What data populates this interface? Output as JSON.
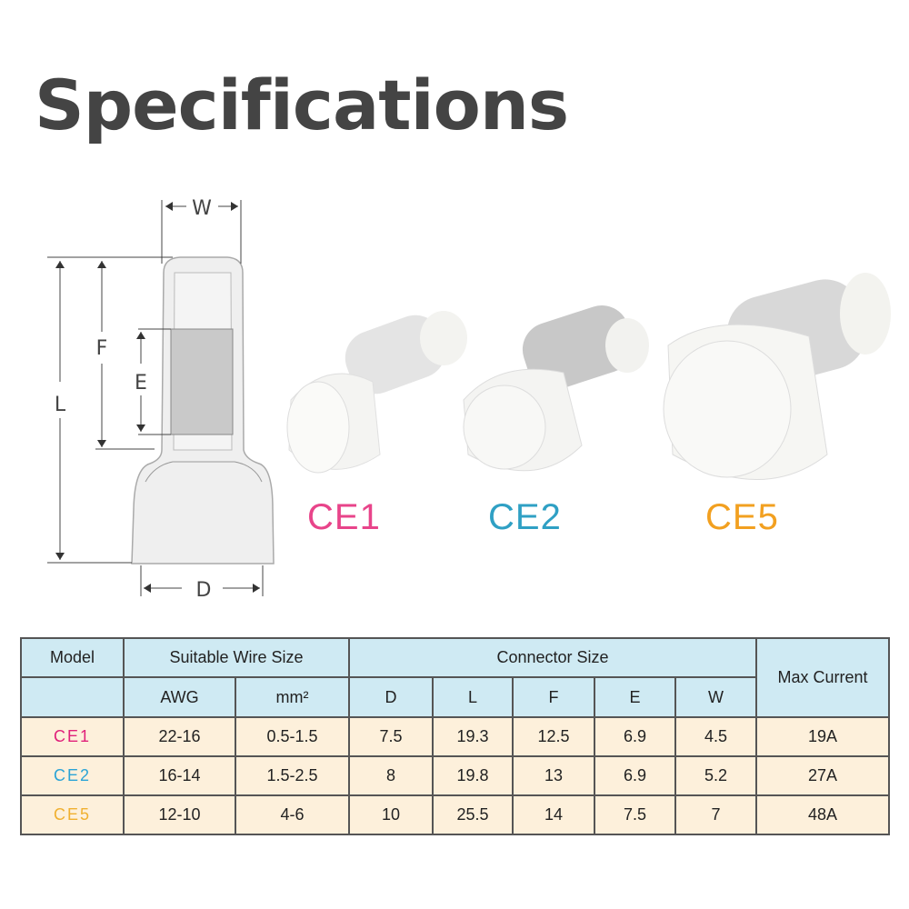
{
  "title": "Specifications",
  "diagram": {
    "labels": {
      "w": "W",
      "f": "F",
      "e": "E",
      "l": "L",
      "d": "D"
    }
  },
  "products": [
    {
      "label": "CE1",
      "color": "#e8448a"
    },
    {
      "label": "CE2",
      "color": "#2fa0c4"
    },
    {
      "label": "CE5",
      "color": "#f2a020"
    }
  ],
  "table": {
    "headers": {
      "model": "Model",
      "wire_size": "Suitable Wire Size",
      "connector_size": "Connector Size",
      "max_current": "Max Current",
      "awg": "AWG",
      "mm2": "mm²",
      "d": "D",
      "l": "L",
      "f": "F",
      "e": "E",
      "w": "W"
    },
    "rows": [
      {
        "model": "CE1",
        "color": "#e0207a",
        "awg": "22-16",
        "mm2": "0.5-1.5",
        "d": "7.5",
        "l": "19.3",
        "f": "12.5",
        "e": "6.9",
        "w": "4.5",
        "current": "19A"
      },
      {
        "model": "CE2",
        "color": "#2aa3d6",
        "awg": "16-14",
        "mm2": "1.5-2.5",
        "d": "8",
        "l": "19.8",
        "f": "13",
        "e": "6.9",
        "w": "5.2",
        "current": "27A"
      },
      {
        "model": "CE5",
        "color": "#f0b030",
        "awg": "12-10",
        "mm2": "4-6",
        "d": "10",
        "l": "25.5",
        "f": "14",
        "e": "7.5",
        "w": "7",
        "current": "48A"
      }
    ]
  }
}
